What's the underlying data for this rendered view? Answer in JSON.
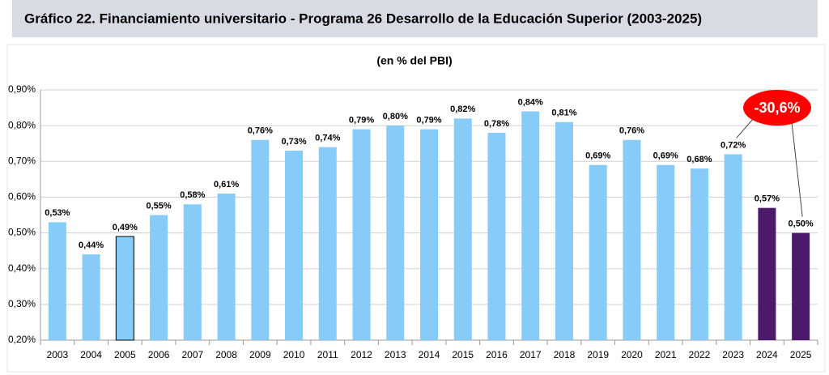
{
  "chart_data": {
    "type": "bar",
    "title": "Gráfico 22. Financiamiento universitario - Programa 26 Desarrollo de la Educación Superior (2003-2025)",
    "subtitle": "(en % del PBI)",
    "categories": [
      "2003",
      "2004",
      "2005",
      "2006",
      "2007",
      "2008",
      "2009",
      "2010",
      "2011",
      "2012",
      "2013",
      "2014",
      "2015",
      "2016",
      "2017",
      "2018",
      "2019",
      "2020",
      "2021",
      "2022",
      "2023",
      "2024",
      "2025"
    ],
    "values": [
      0.53,
      0.44,
      0.49,
      0.55,
      0.58,
      0.61,
      0.76,
      0.73,
      0.74,
      0.79,
      0.8,
      0.79,
      0.82,
      0.78,
      0.84,
      0.81,
      0.69,
      0.76,
      0.69,
      0.68,
      0.72,
      0.57,
      0.5
    ],
    "value_labels": [
      "0,53%",
      "0,44%",
      "0,49%",
      "0,55%",
      "0,58%",
      "0,61%",
      "0,76%",
      "0,73%",
      "0,74%",
      "0,79%",
      "0,80%",
      "0,79%",
      "0,82%",
      "0,78%",
      "0,84%",
      "0,81%",
      "0,69%",
      "0,76%",
      "0,69%",
      "0,68%",
      "0,72%",
      "0,57%",
      "0,50%"
    ],
    "colors": [
      "#87cbf9",
      "#87cbf9",
      "#87cbf9",
      "#87cbf9",
      "#87cbf9",
      "#87cbf9",
      "#87cbf9",
      "#87cbf9",
      "#87cbf9",
      "#87cbf9",
      "#87cbf9",
      "#87cbf9",
      "#87cbf9",
      "#87cbf9",
      "#87cbf9",
      "#87cbf9",
      "#87cbf9",
      "#87cbf9",
      "#87cbf9",
      "#87cbf9",
      "#87cbf9",
      "#4b1a6b",
      "#4b1a6b"
    ],
    "edgecolors": [
      null,
      null,
      "#000000",
      null,
      null,
      null,
      null,
      null,
      null,
      null,
      null,
      null,
      null,
      null,
      null,
      null,
      null,
      null,
      null,
      null,
      null,
      null,
      null
    ],
    "ylim": [
      0.2,
      0.9
    ],
    "yticks": [
      {
        "value": 0.2,
        "label": "0,20%"
      },
      {
        "value": 0.3,
        "label": "0,30%"
      },
      {
        "value": 0.4,
        "label": "0,40%"
      },
      {
        "value": 0.5,
        "label": "0,50%"
      },
      {
        "value": 0.6,
        "label": "0,60%"
      },
      {
        "value": 0.7,
        "label": "0,70%"
      },
      {
        "value": 0.8,
        "label": "0,80%"
      },
      {
        "value": 0.9,
        "label": "0,90%"
      }
    ],
    "grid": true,
    "annotation": {
      "text": "-30,6%",
      "color": "#ff0000"
    }
  }
}
